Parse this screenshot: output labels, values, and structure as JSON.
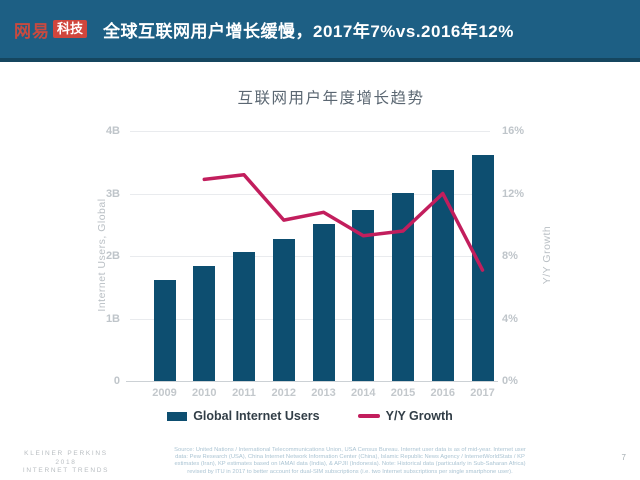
{
  "header": {
    "logo_primary": "网易",
    "logo_badge": "科技",
    "title": "全球互联网用户增长缓慢，2017年7%vs.2016年12%"
  },
  "chart_data": {
    "type": "bar",
    "title": "互联网用户年度增长趋势",
    "categories": [
      "2009",
      "2010",
      "2011",
      "2012",
      "2013",
      "2014",
      "2015",
      "2016",
      "2017"
    ],
    "series": [
      {
        "name": "Global Internet Users",
        "kind": "bar",
        "axis": "left",
        "unit": "B",
        "values": [
          1.62,
          1.84,
          2.06,
          2.27,
          2.51,
          2.74,
          3.01,
          3.37,
          3.62
        ]
      },
      {
        "name": "Y/Y Growth",
        "kind": "line",
        "axis": "right",
        "unit": "%",
        "x": [
          "2010",
          "2011",
          "2012",
          "2013",
          "2014",
          "2015",
          "2016",
          "2017"
        ],
        "values": [
          12.9,
          13.2,
          10.3,
          10.8,
          9.3,
          9.6,
          12.0,
          7.1
        ]
      }
    ],
    "xlabel": "",
    "ylabel_left": "Internet Users, Global",
    "ylabel_right": "Y/Y Growth",
    "ylim_left": [
      0,
      4
    ],
    "ylim_right": [
      0,
      16
    ],
    "left_ticks": [
      {
        "label": "0",
        "value": 0
      },
      {
        "label": "1B",
        "value": 1
      },
      {
        "label": "2B",
        "value": 2
      },
      {
        "label": "3B",
        "value": 3
      },
      {
        "label": "4B",
        "value": 4
      }
    ],
    "right_ticks": [
      {
        "label": "0%",
        "value": 0
      },
      {
        "label": "4%",
        "value": 4
      },
      {
        "label": "8%",
        "value": 8
      },
      {
        "label": "12%",
        "value": 12
      },
      {
        "label": "16%",
        "value": 16
      }
    ],
    "grid": true,
    "legend_position": "bottom"
  },
  "colors": {
    "header_bg": "#1d5f84",
    "header_border": "#15465f",
    "logo_red": "#d0463d",
    "bar": "#0d4e70",
    "line": "#c21e5d",
    "grid": "#e9ebee",
    "axis_text": "#bfc5ca",
    "legend_text": "#323e47",
    "chart_title_text": "#5b6772"
  },
  "footer": {
    "brand_lines": [
      "KLEINER PERKINS",
      "2018",
      "INTERNET TRENDS"
    ],
    "source_lines": [
      "Source: United Nations / International Telecommunications Union, USA Census Bureau. Internet user data is as of mid-year. Internet user",
      "data: Pew Research (USA), China Internet Network Information Center (China), Islamic Republic News Agency / InternetWorldStats / KP",
      "estimates (Iran), KP estimates based on IAMAI data (India), & APJII (Indonesia). Note: Historical data (particularly in Sub-Saharan Africa)",
      "revised by ITU in 2017 to better account for dual-SIM subscriptions (i.e. two Internet subscriptions per single smartphone user)."
    ],
    "page_number": "7"
  }
}
